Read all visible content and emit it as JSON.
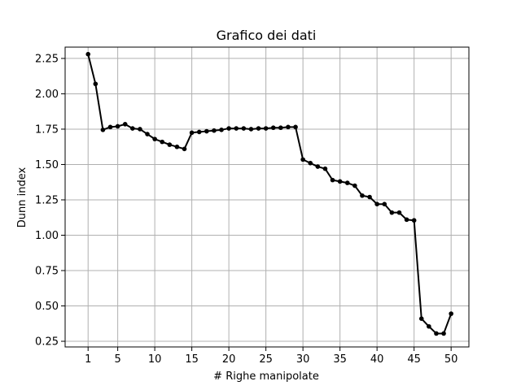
{
  "chart_data": {
    "type": "line",
    "title": "Grafico dei dati",
    "xlabel": "# Righe manipolate",
    "ylabel": "Dunn index",
    "xlim": [
      -2.1,
      52.4
    ],
    "ylim": [
      0.21,
      2.33
    ],
    "grid": true,
    "x_ticks": [
      1,
      5,
      10,
      15,
      20,
      25,
      30,
      35,
      40,
      45,
      50
    ],
    "y_ticks": [
      0.25,
      0.5,
      0.75,
      1.0,
      1.25,
      1.5,
      1.75,
      2.0,
      2.25
    ],
    "y_tick_labels": [
      "0.25",
      "0.50",
      "0.75",
      "1.00",
      "1.25",
      "1.50",
      "1.75",
      "2.00",
      "2.25"
    ],
    "line_color": "#000000",
    "series": [
      {
        "x": [
          1,
          2,
          3,
          4,
          5,
          6,
          7,
          8,
          9,
          10,
          11,
          12,
          13,
          14,
          15,
          16,
          17,
          18,
          19,
          20,
          21,
          22,
          23,
          24,
          25,
          26,
          27,
          28,
          29,
          30,
          31,
          32,
          33,
          34,
          35,
          36,
          37,
          38,
          39,
          40,
          41,
          42,
          43,
          44,
          45,
          46,
          47,
          48,
          49,
          50
        ],
        "values": [
          2.28,
          2.07,
          1.745,
          1.765,
          1.77,
          1.785,
          1.755,
          1.75,
          1.715,
          1.68,
          1.66,
          1.64,
          1.625,
          1.61,
          1.725,
          1.73,
          1.735,
          1.74,
          1.745,
          1.755,
          1.755,
          1.755,
          1.75,
          1.755,
          1.755,
          1.76,
          1.76,
          1.765,
          1.765,
          1.535,
          1.51,
          1.485,
          1.47,
          1.39,
          1.38,
          1.37,
          1.35,
          1.28,
          1.27,
          1.22,
          1.22,
          1.16,
          1.16,
          1.11,
          1.105,
          0.41,
          0.355,
          0.305,
          0.305,
          0.445
        ]
      }
    ]
  }
}
